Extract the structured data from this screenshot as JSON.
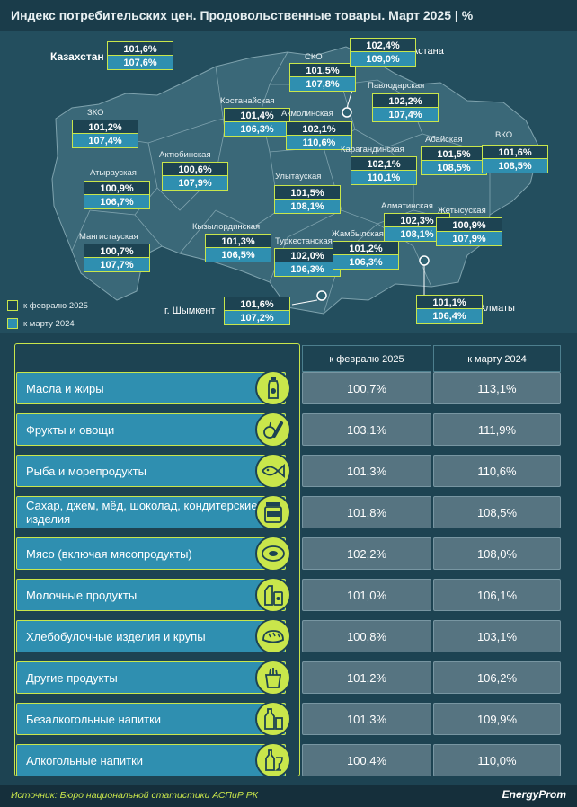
{
  "header": {
    "title": "Индекс потребительских цен. Продовольственные товары. Март 2025",
    "unit": "| %"
  },
  "map": {
    "kazakhstan": {
      "label": "Казахстан",
      "v1": "101,6%",
      "v2": "107,6%"
    },
    "regions": [
      {
        "key": "sko",
        "name": "СКО",
        "v1": "101,5%",
        "v2": "107,8%"
      },
      {
        "key": "astana",
        "name": "г. Астана",
        "v1": "102,4%",
        "v2": "109,0%"
      },
      {
        "key": "pavlodar",
        "name": "Павлодарская",
        "v1": "102,2%",
        "v2": "107,4%"
      },
      {
        "key": "kostanay",
        "name": "Костанайская",
        "v1": "101,4%",
        "v2": "106,3%"
      },
      {
        "key": "akmola",
        "name": "Акмолинская",
        "v1": "102,1%",
        "v2": "110,6%"
      },
      {
        "key": "zko",
        "name": "ЗКО",
        "v1": "101,2%",
        "v2": "107,4%"
      },
      {
        "key": "aktobe",
        "name": "Актюбинская",
        "v1": "100,6%",
        "v2": "107,9%"
      },
      {
        "key": "karaganda",
        "name": "Карагандинская",
        "v1": "102,1%",
        "v2": "110,1%"
      },
      {
        "key": "abay",
        "name": "Абайская",
        "v1": "101,5%",
        "v2": "108,5%"
      },
      {
        "key": "vko",
        "name": "ВКО",
        "v1": "101,6%",
        "v2": "108,5%"
      },
      {
        "key": "atyrau",
        "name": "Атырауская",
        "v1": "100,9%",
        "v2": "106,7%"
      },
      {
        "key": "ulytau",
        "name": "Улытауская",
        "v1": "101,5%",
        "v2": "108,1%"
      },
      {
        "key": "almaty_obl",
        "name": "Алматинская",
        "v1": "102,3%",
        "v2": "108,1%"
      },
      {
        "key": "zhetysu",
        "name": "Жетысуская",
        "v1": "100,9%",
        "v2": "107,9%"
      },
      {
        "key": "mangystau",
        "name": "Мангистауская",
        "v1": "100,7%",
        "v2": "107,7%"
      },
      {
        "key": "kyzylorda",
        "name": "Кызылординская",
        "v1": "101,3%",
        "v2": "106,5%"
      },
      {
        "key": "turkestan",
        "name": "Туркестанская",
        "v1": "102,0%",
        "v2": "106,3%"
      },
      {
        "key": "zhambyl",
        "name": "Жамбылская",
        "v1": "101,2%",
        "v2": "106,3%"
      },
      {
        "key": "shymkent",
        "name": "г. Шымкент",
        "v1": "101,6%",
        "v2": "107,2%"
      },
      {
        "key": "almaty",
        "name": "г. Алматы",
        "v1": "101,1%",
        "v2": "106,4%"
      }
    ],
    "legend": {
      "feb": "к февралю 2025",
      "mar": "к марту 2024"
    }
  },
  "table": {
    "col_feb": "к февралю 2025",
    "col_mar": "к марту 2024",
    "rows": [
      {
        "label": "Масла и жиры",
        "icon": "oil-bottle-icon",
        "feb": "100,7%",
        "mar": "113,1%"
      },
      {
        "label": "Фрукты и овощи",
        "icon": "fruit-vegetable-icon",
        "feb": "103,1%",
        "mar": "111,9%"
      },
      {
        "label": "Рыба и морепродукты",
        "icon": "fish-icon",
        "feb": "101,3%",
        "mar": "110,6%"
      },
      {
        "label": "Сахар, джем, мёд, шоколад, кондитерские изделия",
        "icon": "sugar-jar-icon",
        "feb": "101,8%",
        "mar": "108,5%"
      },
      {
        "label": "Мясо (включая мясопродукты)",
        "icon": "meat-icon",
        "feb": "102,2%",
        "mar": "108,0%"
      },
      {
        "label": "Молочные продукты",
        "icon": "milk-icon",
        "feb": "101,0%",
        "mar": "106,1%"
      },
      {
        "label": "Хлебобулочные изделия и крупы",
        "icon": "bread-icon",
        "feb": "100,8%",
        "mar": "103,1%"
      },
      {
        "label": "Другие продукты",
        "icon": "grocery-bag-icon",
        "feb": "101,2%",
        "mar": "106,2%"
      },
      {
        "label": "Безалкогольные напитки",
        "icon": "soft-drink-icon",
        "feb": "101,3%",
        "mar": "109,9%"
      },
      {
        "label": "Алкогольные напитки",
        "icon": "wine-icon",
        "feb": "100,4%",
        "mar": "110,0%"
      }
    ]
  },
  "footer": {
    "source": "Источник: Бюро национальной статистики АСПиР РК",
    "brand": "EnergyProm"
  },
  "colors": {
    "background": "#1d4352",
    "map_background": "#234e5e",
    "accent": "#c9e64b",
    "row_blue": "#2f8fb0",
    "cell_grey": "#567481"
  },
  "chart_data": {
    "type": "table",
    "title": "Индекс потребительских цен. Продовольственные товары. Март 2025",
    "columns": [
      "к февралю 2025",
      "к марту 2024"
    ],
    "categories": [
      "Масла и жиры",
      "Фрукты и овощи",
      "Рыба и морепродукты",
      "Сахар, джем, мёд, шоколад, кондитерские изделия",
      "Мясо (включая мясопродукты)",
      "Молочные продукты",
      "Хлебобулочные изделия и крупы",
      "Другие продукты",
      "Безалкогольные напитки",
      "Алкогольные напитки"
    ],
    "series": [
      {
        "name": "к февралю 2025",
        "values": [
          100.7,
          103.1,
          101.3,
          101.8,
          102.2,
          101.0,
          100.8,
          101.2,
          101.3,
          100.4
        ]
      },
      {
        "name": "к марту 2024",
        "values": [
          113.1,
          111.9,
          110.6,
          108.5,
          108.0,
          106.1,
          103.1,
          106.2,
          109.9,
          110.0
        ]
      }
    ],
    "map_regions": {
      "categories": [
        "Казахстан",
        "СКО",
        "г. Астана",
        "Павлодарская",
        "Костанайская",
        "Акмолинская",
        "ЗКО",
        "Актюбинская",
        "Карагандинская",
        "Абайская",
        "ВКО",
        "Атырауская",
        "Улытауская",
        "Алматинская",
        "Жетысуская",
        "Мангистауская",
        "Кызылординская",
        "Туркестанская",
        "Жамбылская",
        "г. Шымкент",
        "г. Алматы"
      ],
      "series": [
        {
          "name": "к февралю 2025",
          "values": [
            101.6,
            101.5,
            102.4,
            102.2,
            101.4,
            102.1,
            101.2,
            100.6,
            102.1,
            101.5,
            101.6,
            100.9,
            101.5,
            102.3,
            100.9,
            100.7,
            101.3,
            102.0,
            101.2,
            101.6,
            101.1
          ]
        },
        {
          "name": "к марту 2024",
          "values": [
            107.6,
            107.8,
            109.0,
            107.4,
            106.3,
            110.6,
            107.4,
            107.9,
            110.1,
            108.5,
            108.5,
            106.7,
            108.1,
            108.1,
            107.9,
            107.7,
            106.5,
            106.3,
            106.3,
            107.2,
            106.4
          ]
        }
      ]
    }
  }
}
